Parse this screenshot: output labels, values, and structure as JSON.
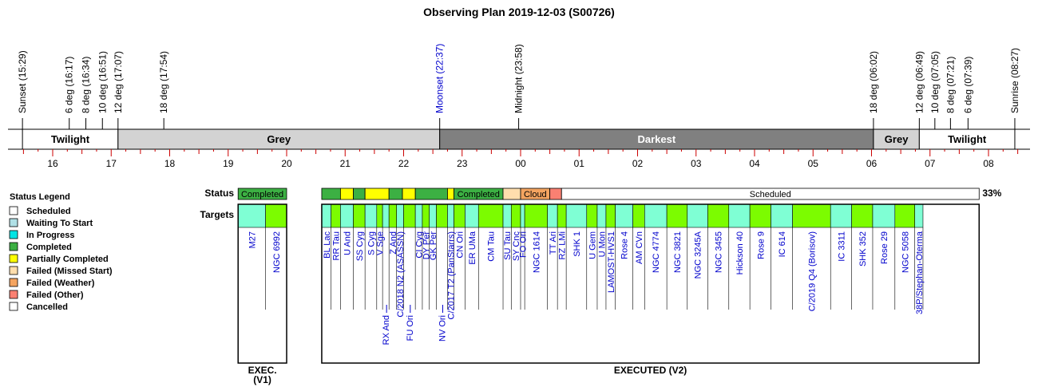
{
  "title": "Observing Plan 2019-12-03 (S00726)",
  "events": [
    {
      "label": "Sunset (15:29)",
      "hour": 15.483,
      "color": "#000000"
    },
    {
      "label": "6 deg (16:17)",
      "hour": 16.283,
      "color": "#000000"
    },
    {
      "label": "8 deg (16:34)",
      "hour": 16.567,
      "color": "#000000"
    },
    {
      "label": "10 deg (16:51)",
      "hour": 16.85,
      "color": "#000000"
    },
    {
      "label": "12 deg (17:07)",
      "hour": 17.117,
      "color": "#000000"
    },
    {
      "label": "18 deg (17:54)",
      "hour": 17.9,
      "color": "#000000"
    },
    {
      "label": "Moonset (22:37)",
      "hour": 22.617,
      "color": "#0000cc"
    },
    {
      "label": "Midnight (23:58)",
      "hour": 23.967,
      "color": "#000000"
    },
    {
      "label": "18 deg (06:02)",
      "hour": 30.033,
      "color": "#000000"
    },
    {
      "label": "12 deg (06:49)",
      "hour": 30.817,
      "color": "#000000"
    },
    {
      "label": "10 deg (07:05)",
      "hour": 31.083,
      "color": "#000000"
    },
    {
      "label": "8 deg (07:21)",
      "hour": 31.35,
      "color": "#000000"
    },
    {
      "label": "6 deg (07:39)",
      "hour": 31.65,
      "color": "#000000"
    },
    {
      "label": "Sunrise (08:27)",
      "hour": 32.45,
      "color": "#000000"
    }
  ],
  "bands": [
    {
      "label": "Twilight",
      "start": 15.483,
      "end": 17.117,
      "color": "#ffffff",
      "text_color": "#000000"
    },
    {
      "label": "Grey",
      "start": 17.117,
      "end": 22.617,
      "color": "#d3d3d3",
      "text_color": "#000000"
    },
    {
      "label": "Darkest",
      "start": 22.617,
      "end": 30.033,
      "color": "#808080",
      "text_color": "#ffffff"
    },
    {
      "label": "Grey",
      "start": 30.033,
      "end": 30.817,
      "color": "#d3d3d3",
      "text_color": "#000000"
    },
    {
      "label": "Twilight",
      "start": 30.817,
      "end": 32.45,
      "color": "#ffffff",
      "text_color": "#000000"
    }
  ],
  "hour_labels": [
    "16",
    "17",
    "18",
    "19",
    "20",
    "21",
    "22",
    "23",
    "00",
    "01",
    "02",
    "03",
    "04",
    "05",
    "06",
    "07",
    "08"
  ],
  "legend": {
    "title": "Status Legend",
    "items": [
      {
        "label": "Scheduled",
        "color": "#ffffff"
      },
      {
        "label": "Waiting To Start",
        "color": "#b0e0e6"
      },
      {
        "label": "In Progress",
        "color": "#00e5e5"
      },
      {
        "label": "Completed",
        "color": "#3cb043"
      },
      {
        "label": "Partially Completed",
        "color": "#ffff00"
      },
      {
        "label": "Failed (Missed Start)",
        "color": "#ffdead"
      },
      {
        "label": "Failed (Weather)",
        "color": "#f4a460"
      },
      {
        "label": "Failed (Other)",
        "color": "#fa8072"
      },
      {
        "label": "Cancelled",
        "color": "#ffffff"
      }
    ]
  },
  "row_labels": {
    "status": "Status",
    "targets": "Targets"
  },
  "completed_summary": "Completed 33%",
  "colors": {
    "completed": "#3cb043",
    "partial": "#ffff00",
    "missed": "#ffdead",
    "cloud": "#f4a460",
    "failed_other": "#fa8072",
    "scheduled": "#ffffff",
    "target_green": "#7cfc00",
    "target_cyan": "#7fffd4",
    "target_text": "#0000cc"
  },
  "panels": [
    {
      "footer": [
        "EXEC.",
        "(V1)"
      ],
      "start": 19.17,
      "end": 20.0,
      "status": [
        {
          "label": "Completed",
          "start": 19.17,
          "end": 20.0,
          "state": "completed"
        }
      ],
      "targets": [
        {
          "name": "M27",
          "start": 19.17,
          "end": 19.64,
          "color": "cyan",
          "level": 0
        },
        {
          "name": "NGC 6992",
          "start": 19.64,
          "end": 20.0,
          "color": "green",
          "level": 0
        }
      ]
    },
    {
      "footer": [
        "EXECUTED (V2)"
      ],
      "start": 20.6,
      "end": 31.84,
      "status": [
        {
          "label": "",
          "start": 20.6,
          "end": 20.92,
          "state": "completed"
        },
        {
          "label": "",
          "start": 20.92,
          "end": 21.14,
          "state": "partial"
        },
        {
          "label": "",
          "start": 21.14,
          "end": 21.34,
          "state": "completed"
        },
        {
          "label": "",
          "start": 21.34,
          "end": 21.75,
          "state": "partial"
        },
        {
          "label": "",
          "start": 21.75,
          "end": 21.98,
          "state": "completed"
        },
        {
          "label": "",
          "start": 21.98,
          "end": 22.2,
          "state": "partial"
        },
        {
          "label": "",
          "start": 22.2,
          "end": 22.75,
          "state": "completed"
        },
        {
          "label": "",
          "start": 22.75,
          "end": 22.86,
          "state": "partial"
        },
        {
          "label": "Completed",
          "start": 22.86,
          "end": 23.7,
          "state": "completed"
        },
        {
          "label": "",
          "start": 23.7,
          "end": 24.0,
          "state": "missed"
        },
        {
          "label": "Cloud",
          "start": 24.0,
          "end": 24.5,
          "state": "cloud"
        },
        {
          "label": "",
          "start": 24.5,
          "end": 24.7,
          "state": "failed_other"
        },
        {
          "label": "Scheduled",
          "start": 24.7,
          "end": 31.84,
          "state": "scheduled"
        }
      ],
      "targets": [
        {
          "name": "BL Lac",
          "start": 20.6,
          "end": 20.76,
          "color": "cyan",
          "level": 0
        },
        {
          "name": "RR Tau",
          "start": 20.76,
          "end": 20.92,
          "color": "green",
          "level": 0
        },
        {
          "name": "U And",
          "start": 20.92,
          "end": 21.14,
          "color": "cyan",
          "level": 0
        },
        {
          "name": "SS Cyg",
          "start": 21.14,
          "end": 21.34,
          "color": "green",
          "level": 0
        },
        {
          "name": "S Cyg",
          "start": 21.34,
          "end": 21.54,
          "color": "cyan",
          "level": 0
        },
        {
          "name": "V Sge",
          "start": 21.54,
          "end": 21.64,
          "color": "green",
          "level": 0
        },
        {
          "name": "RX And",
          "start": 21.64,
          "end": 21.75,
          "color": "cyan",
          "level": 1
        },
        {
          "name": "Z And",
          "start": 21.75,
          "end": 21.88,
          "color": "green",
          "level": 0
        },
        {
          "name": "C/2018 N2 (ASASSN)",
          "start": 21.88,
          "end": 22.0,
          "color": "cyan",
          "level": 0
        },
        {
          "name": "FU Ori",
          "start": 22.0,
          "end": 22.2,
          "color": "green",
          "level": 1
        },
        {
          "name": "CI Cyg",
          "start": 22.2,
          "end": 22.32,
          "color": "cyan",
          "level": 0
        },
        {
          "name": "DY Per",
          "start": 22.32,
          "end": 22.44,
          "color": "green",
          "level": 0
        },
        {
          "name": "GK Per",
          "start": 22.44,
          "end": 22.56,
          "color": "cyan",
          "level": 0
        },
        {
          "name": "NV Ori",
          "start": 22.56,
          "end": 22.75,
          "color": "green",
          "level": 1
        },
        {
          "name": "C/2017 T2 (PanStarrs)",
          "start": 22.75,
          "end": 22.86,
          "color": "cyan",
          "level": 0
        },
        {
          "name": "CN Ori",
          "start": 22.86,
          "end": 23.05,
          "color": "green",
          "level": 0
        },
        {
          "name": "ER UMa",
          "start": 23.05,
          "end": 23.28,
          "color": "cyan",
          "level": 0
        },
        {
          "name": "CM Tau",
          "start": 23.28,
          "end": 23.7,
          "color": "green",
          "level": 0
        },
        {
          "name": "SU Tau",
          "start": 23.7,
          "end": 23.84,
          "color": "cyan",
          "level": 0
        },
        {
          "name": "SY Cnc",
          "start": 23.84,
          "end": 24.0,
          "color": "green",
          "level": 0
        },
        {
          "name": "FO Ori",
          "start": 24.0,
          "end": 24.07,
          "color": "cyan",
          "level": 0
        },
        {
          "name": "NGC 1614",
          "start": 24.07,
          "end": 24.46,
          "color": "green",
          "level": 0
        },
        {
          "name": "TT Ari",
          "start": 24.46,
          "end": 24.63,
          "color": "cyan",
          "level": 0
        },
        {
          "name": "RZ LMi",
          "start": 24.63,
          "end": 24.78,
          "color": "green",
          "level": 0
        },
        {
          "name": "SHK 1",
          "start": 24.78,
          "end": 25.13,
          "color": "cyan",
          "level": 0
        },
        {
          "name": "U Gem",
          "start": 25.13,
          "end": 25.31,
          "color": "green",
          "level": 0
        },
        {
          "name": "U Mon",
          "start": 25.31,
          "end": 25.46,
          "color": "cyan",
          "level": 0
        },
        {
          "name": "LAMOST-HVS1",
          "start": 25.46,
          "end": 25.62,
          "color": "green",
          "level": 0
        },
        {
          "name": "Rose 4",
          "start": 25.62,
          "end": 25.92,
          "color": "cyan",
          "level": 0
        },
        {
          "name": "AM CVn",
          "start": 25.92,
          "end": 26.12,
          "color": "green",
          "level": 0
        },
        {
          "name": "NGC 4774",
          "start": 26.12,
          "end": 26.5,
          "color": "cyan",
          "level": 0
        },
        {
          "name": "NGC 3821",
          "start": 26.5,
          "end": 26.85,
          "color": "green",
          "level": 0
        },
        {
          "name": "NGC 3245A",
          "start": 26.85,
          "end": 27.2,
          "color": "cyan",
          "level": 0
        },
        {
          "name": "NGC 3455",
          "start": 27.2,
          "end": 27.56,
          "color": "green",
          "level": 0
        },
        {
          "name": "Hickson 40",
          "start": 27.56,
          "end": 27.92,
          "color": "cyan",
          "level": 0
        },
        {
          "name": "Rose 9",
          "start": 27.92,
          "end": 28.28,
          "color": "green",
          "level": 0
        },
        {
          "name": "IC 614",
          "start": 28.28,
          "end": 28.65,
          "color": "cyan",
          "level": 0
        },
        {
          "name": "C/2019 Q4 (Borisov)",
          "start": 28.65,
          "end": 29.3,
          "color": "green",
          "level": 0
        },
        {
          "name": "IC 3311",
          "start": 29.3,
          "end": 29.66,
          "color": "cyan",
          "level": 0
        },
        {
          "name": "SHK 352",
          "start": 29.66,
          "end": 30.02,
          "color": "green",
          "level": 0
        },
        {
          "name": "Rose 29",
          "start": 30.02,
          "end": 30.4,
          "color": "cyan",
          "level": 0
        },
        {
          "name": "NGC 5058",
          "start": 30.4,
          "end": 30.74,
          "color": "green",
          "level": 0
        },
        {
          "name": "38P/Stephan-Oterma",
          "start": 30.74,
          "end": 30.88,
          "color": "cyan",
          "level": 0
        }
      ]
    }
  ]
}
